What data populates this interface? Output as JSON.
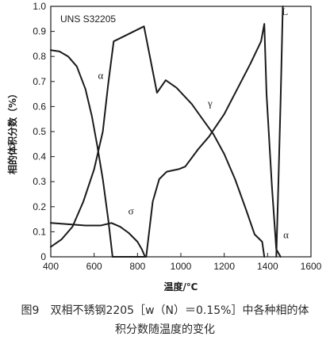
{
  "chart_data": {
    "type": "line",
    "inset_label": "UNS S32205",
    "xlabel": "温度/℃",
    "ylabel": "相的体积分数（%）",
    "xlim": [
      400,
      1600
    ],
    "ylim": [
      0,
      1.0
    ],
    "x_ticks": [
      400,
      600,
      800,
      1000,
      1200,
      1400,
      1600
    ],
    "y_ticks": [
      0,
      0.1,
      0.2,
      0.3,
      0.4,
      0.5,
      0.6,
      0.7,
      0.8,
      0.9,
      1.0
    ],
    "y_tick_labels": [
      "0",
      "0.1",
      "0.2",
      "0.3",
      "0.4",
      "0.5",
      "0.6",
      "0.7",
      "0.8",
      "0.9",
      "1.0"
    ],
    "grid": false,
    "series": [
      {
        "id": "alpha",
        "points": [
          [
            400,
            0.825
          ],
          [
            440,
            0.82
          ],
          [
            480,
            0.8
          ],
          [
            520,
            0.76
          ],
          [
            560,
            0.67
          ],
          [
            590,
            0.56
          ],
          [
            615,
            0.44
          ],
          [
            640,
            0.31
          ],
          [
            665,
            0.15
          ],
          [
            685,
            0.0
          ],
          [
            840,
            0.0
          ],
          [
            870,
            0.22
          ],
          [
            900,
            0.31
          ],
          [
            935,
            0.34
          ],
          [
            990,
            0.35
          ],
          [
            1020,
            0.36
          ],
          [
            1080,
            0.43
          ],
          [
            1130,
            0.48
          ],
          [
            1200,
            0.57
          ],
          [
            1260,
            0.67
          ],
          [
            1320,
            0.77
          ],
          [
            1370,
            0.86
          ],
          [
            1385,
            0.93
          ],
          [
            1395,
            0.65
          ],
          [
            1420,
            0.28
          ],
          [
            1440,
            0.03
          ],
          [
            1460,
            0.0
          ]
        ],
        "label": "α",
        "label_value": [
          630,
          0.71
        ]
      },
      {
        "id": "gamma",
        "points": [
          [
            400,
            0.04
          ],
          [
            450,
            0.07
          ],
          [
            500,
            0.12
          ],
          [
            550,
            0.22
          ],
          [
            600,
            0.35
          ],
          [
            640,
            0.5
          ],
          [
            665,
            0.69
          ],
          [
            690,
            0.86
          ],
          [
            830,
            0.92
          ],
          [
            890,
            0.655
          ],
          [
            930,
            0.705
          ],
          [
            980,
            0.675
          ],
          [
            1050,
            0.61
          ],
          [
            1100,
            0.55
          ],
          [
            1150,
            0.49
          ],
          [
            1200,
            0.41
          ],
          [
            1250,
            0.31
          ],
          [
            1300,
            0.19
          ],
          [
            1340,
            0.09
          ],
          [
            1375,
            0.06
          ],
          [
            1385,
            0.0
          ]
        ],
        "label": "γ",
        "label_value": [
          1135,
          0.6
        ]
      },
      {
        "id": "sigma",
        "points": [
          [
            400,
            0.135
          ],
          [
            480,
            0.13
          ],
          [
            560,
            0.125
          ],
          [
            630,
            0.125
          ],
          [
            680,
            0.135
          ],
          [
            720,
            0.12
          ],
          [
            760,
            0.095
          ],
          [
            800,
            0.06
          ],
          [
            820,
            0.03
          ],
          [
            835,
            0.0
          ]
        ],
        "label": "σ",
        "label_value": [
          770,
          0.17
        ]
      },
      {
        "id": "liquid",
        "points": [
          [
            1440,
            0.0
          ],
          [
            1450,
            0.3
          ],
          [
            1460,
            0.62
          ],
          [
            1470,
            1.0
          ]
        ],
        "label": "L",
        "label_value": [
          1480,
          0.965
        ]
      }
    ],
    "extra_labels": [
      {
        "text": "α",
        "value": [
          1485,
          0.075
        ]
      }
    ]
  },
  "caption": {
    "line1": "图9　双相不锈钢2205［w（N）＝0.15%］中各种相的体",
    "line2": "积分数随温度的变化"
  }
}
